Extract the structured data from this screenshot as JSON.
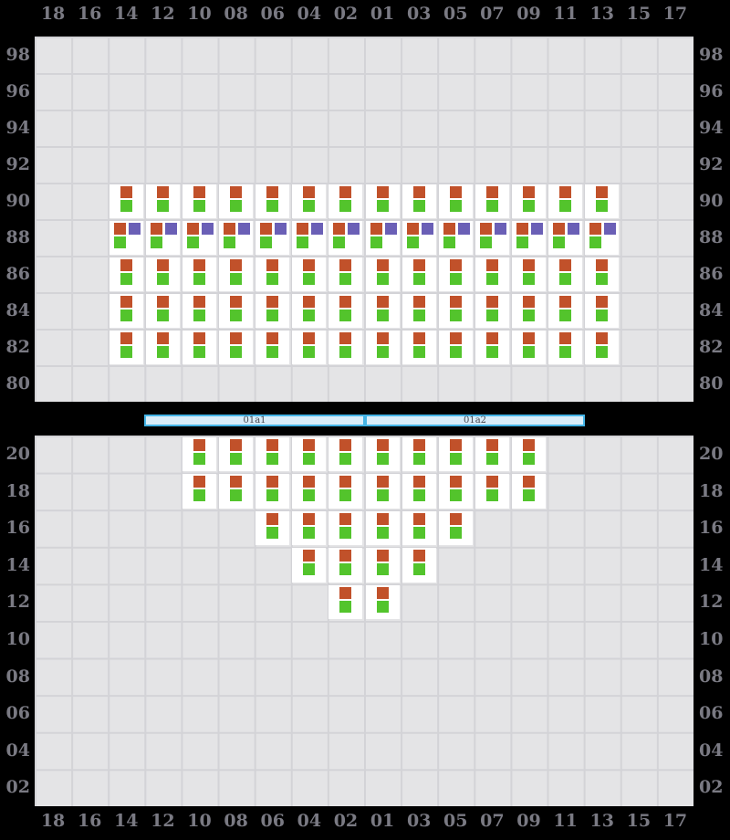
{
  "colors": {
    "page_bg": "#000000",
    "panel_bg": "#e4e4e6",
    "grid_line": "#d3d3d7",
    "slot_bg": "#ffffff",
    "marker_red": "#c1512a",
    "marker_green": "#53c42c",
    "marker_purple": "#6a5fb6",
    "hatch_fill": "#d9edf9",
    "hatch_border": "#44b4e6",
    "hatch_label": "#46464e",
    "axis_label": "#7a7a83"
  },
  "axes": {
    "columns": [
      "18",
      "16",
      "14",
      "12",
      "10",
      "08",
      "06",
      "04",
      "02",
      "01",
      "03",
      "05",
      "07",
      "09",
      "11",
      "13",
      "15",
      "17"
    ],
    "deck_tiers": [
      "98",
      "96",
      "94",
      "92",
      "90",
      "88",
      "86",
      "84",
      "82",
      "80"
    ],
    "hold_tiers": [
      "20",
      "18",
      "16",
      "14",
      "12",
      "10",
      "08",
      "06",
      "04",
      "02"
    ]
  },
  "deck_rows": [
    {
      "tier": "90",
      "columns": [
        "14",
        "12",
        "10",
        "08",
        "06",
        "04",
        "02",
        "01",
        "03",
        "05",
        "07",
        "09",
        "11",
        "13"
      ],
      "markers": [
        "red",
        "green"
      ]
    },
    {
      "tier": "88",
      "columns": [
        "14",
        "12",
        "10",
        "08",
        "06",
        "04",
        "02",
        "01",
        "03",
        "05",
        "07",
        "09",
        "11",
        "13"
      ],
      "markers": [
        "red",
        "purple",
        "green"
      ]
    },
    {
      "tier": "86",
      "columns": [
        "14",
        "12",
        "10",
        "08",
        "06",
        "04",
        "02",
        "01",
        "03",
        "05",
        "07",
        "09",
        "11",
        "13"
      ],
      "markers": [
        "red",
        "green"
      ]
    },
    {
      "tier": "84",
      "columns": [
        "14",
        "12",
        "10",
        "08",
        "06",
        "04",
        "02",
        "01",
        "03",
        "05",
        "07",
        "09",
        "11",
        "13"
      ],
      "markers": [
        "red",
        "green"
      ]
    },
    {
      "tier": "82",
      "columns": [
        "14",
        "12",
        "10",
        "08",
        "06",
        "04",
        "02",
        "01",
        "03",
        "05",
        "07",
        "09",
        "11",
        "13"
      ],
      "markers": [
        "red",
        "green"
      ]
    }
  ],
  "hold_rows": [
    {
      "tier": "20",
      "columns": [
        "10",
        "08",
        "06",
        "04",
        "02",
        "01",
        "03",
        "05",
        "07",
        "09"
      ],
      "markers": [
        "red",
        "green"
      ]
    },
    {
      "tier": "18",
      "columns": [
        "10",
        "08",
        "06",
        "04",
        "02",
        "01",
        "03",
        "05",
        "07",
        "09"
      ],
      "markers": [
        "red",
        "green"
      ]
    },
    {
      "tier": "16",
      "columns": [
        "06",
        "04",
        "02",
        "01",
        "03",
        "05"
      ],
      "markers": [
        "red",
        "green"
      ]
    },
    {
      "tier": "14",
      "columns": [
        "04",
        "02",
        "01",
        "03"
      ],
      "markers": [
        "red",
        "green"
      ]
    },
    {
      "tier": "12",
      "columns": [
        "02",
        "01"
      ],
      "markers": [
        "red",
        "green"
      ]
    }
  ],
  "hatch_covers": [
    {
      "label": "01a1"
    },
    {
      "label": "01a2"
    }
  ]
}
